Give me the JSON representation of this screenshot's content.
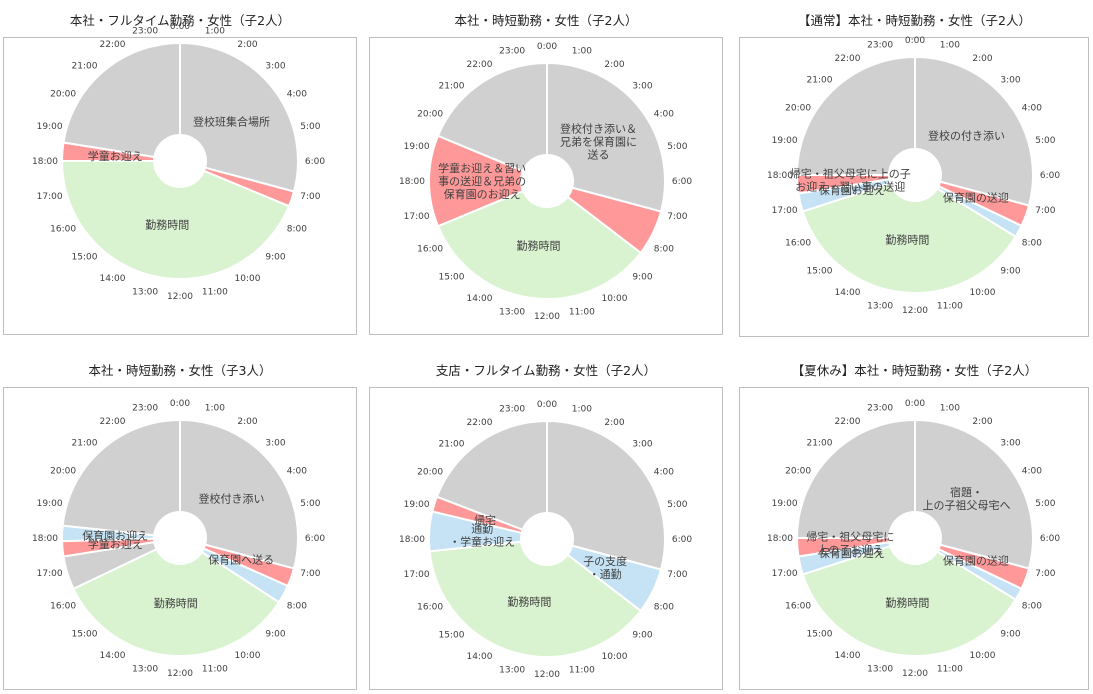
{
  "colors": {
    "gray": "#d0d0d0",
    "red": "#ff9999",
    "green": "#d9f2d0",
    "blue": "#c5e3f4",
    "separator": "#ffffff"
  },
  "hour_labels": [
    "0:00",
    "1:00",
    "2:00",
    "3:00",
    "4:00",
    "5:00",
    "6:00",
    "7:00",
    "8:00",
    "9:00",
    "10:00",
    "11:00",
    "12:00",
    "13:00",
    "14:00",
    "15:00",
    "16:00",
    "17:00",
    "18:00",
    "19:00",
    "20:00",
    "21:00",
    "22:00",
    "23:00"
  ],
  "chart_data": [
    {
      "type": "pie",
      "title": "本社・フルタイム勤務・女性（子2人）",
      "segments": [
        {
          "start": 0,
          "end": 7,
          "color": "gray",
          "label": [
            "登校班集合場所"
          ]
        },
        {
          "start": 7,
          "end": 7.5,
          "color": "red",
          "label": []
        },
        {
          "start": 7.5,
          "end": 18,
          "color": "green",
          "label": [
            "勤務時間"
          ]
        },
        {
          "start": 18,
          "end": 18.6,
          "color": "red",
          "label": [
            "学童お迎え"
          ]
        },
        {
          "start": 18.6,
          "end": 24,
          "color": "gray",
          "label": []
        }
      ]
    },
    {
      "type": "pie",
      "title": "本社・時短勤務・女性（子2人）",
      "segments": [
        {
          "start": 0,
          "end": 7,
          "color": "gray",
          "label": [
            "登校付き添い＆",
            "兄弟を保育園に",
            "送る"
          ]
        },
        {
          "start": 7,
          "end": 8.5,
          "color": "red",
          "label": []
        },
        {
          "start": 8.5,
          "end": 16.5,
          "color": "green",
          "label": [
            "勤務時間"
          ]
        },
        {
          "start": 16.5,
          "end": 19.5,
          "color": "red",
          "label": [
            "学童お迎え＆習い",
            "事の送迎＆兄弟の",
            "保育園のお迎え"
          ]
        },
        {
          "start": 19.5,
          "end": 24,
          "color": "gray",
          "label": []
        }
      ]
    },
    {
      "type": "pie",
      "title": "【通常】本社・時短勤務・女性（子2人）",
      "segments": [
        {
          "start": 0,
          "end": 7,
          "color": "gray",
          "label": [
            "登校の付き添い"
          ]
        },
        {
          "start": 7,
          "end": 7.7,
          "color": "red",
          "label": [
            "保育園の送迎"
          ]
        },
        {
          "start": 7.7,
          "end": 8.1,
          "color": "blue",
          "label": []
        },
        {
          "start": 8.1,
          "end": 16.8,
          "color": "green",
          "label": [
            "勤務時間"
          ]
        },
        {
          "start": 16.8,
          "end": 17.4,
          "color": "blue",
          "label": [
            "保育園お迎え"
          ]
        },
        {
          "start": 17.4,
          "end": 18,
          "color": "red",
          "label": [
            "帰宅・祖父母宅に上の子",
            "お迎え・習い事の送迎"
          ]
        },
        {
          "start": 18,
          "end": 24,
          "color": "gray",
          "label": []
        }
      ]
    },
    {
      "type": "pie",
      "title": "本社・時短勤務・女性（子3人）",
      "segments": [
        {
          "start": 0,
          "end": 7,
          "color": "gray",
          "label": [
            "登校付き添い"
          ]
        },
        {
          "start": 7,
          "end": 7.6,
          "color": "red",
          "label": [
            "保育園へ送る"
          ]
        },
        {
          "start": 7.6,
          "end": 8.2,
          "color": "blue",
          "label": []
        },
        {
          "start": 8.2,
          "end": 16.3,
          "color": "green",
          "label": [
            "勤務時間"
          ]
        },
        {
          "start": 16.3,
          "end": 17.4,
          "color": "gray",
          "label": []
        },
        {
          "start": 17.4,
          "end": 17.9,
          "color": "red",
          "label": [
            "学童お迎え"
          ]
        },
        {
          "start": 17.9,
          "end": 18.4,
          "color": "blue",
          "label": [
            "保育園お迎え"
          ]
        },
        {
          "start": 18.4,
          "end": 24,
          "color": "gray",
          "label": []
        }
      ]
    },
    {
      "type": "pie",
      "title": "支店・フルタイム勤務・女性（子2人）",
      "segments": [
        {
          "start": 0,
          "end": 7,
          "color": "gray",
          "label": []
        },
        {
          "start": 7,
          "end": 8.5,
          "color": "blue",
          "label": [
            "子の支度",
            "・通勤"
          ]
        },
        {
          "start": 8.5,
          "end": 17.6,
          "color": "green",
          "label": [
            "勤務時間"
          ]
        },
        {
          "start": 17.6,
          "end": 18.9,
          "color": "blue",
          "label": [
            "通勤",
            "・学童お迎え"
          ]
        },
        {
          "start": 18.9,
          "end": 19.4,
          "color": "red",
          "label": [
            "帰宅"
          ]
        },
        {
          "start": 19.4,
          "end": 24,
          "color": "gray",
          "label": []
        }
      ]
    },
    {
      "type": "pie",
      "title": "【夏休み】本社・時短勤務・女性（子2人）",
      "segments": [
        {
          "start": 0,
          "end": 7,
          "color": "gray",
          "label": [
            "宿題・",
            "上の子祖父母宅へ"
          ]
        },
        {
          "start": 7,
          "end": 7.7,
          "color": "red",
          "label": [
            "保育園の送迎"
          ]
        },
        {
          "start": 7.7,
          "end": 8.1,
          "color": "blue",
          "label": []
        },
        {
          "start": 8.1,
          "end": 16.8,
          "color": "green",
          "label": [
            "勤務時間"
          ]
        },
        {
          "start": 16.8,
          "end": 17.4,
          "color": "blue",
          "label": [
            "保育園お迎え"
          ]
        },
        {
          "start": 17.4,
          "end": 18,
          "color": "red",
          "label": [
            "帰宅・祖父母宅に",
            "上の子お迎え"
          ]
        },
        {
          "start": 18,
          "end": 24,
          "color": "gray",
          "label": []
        }
      ]
    }
  ]
}
